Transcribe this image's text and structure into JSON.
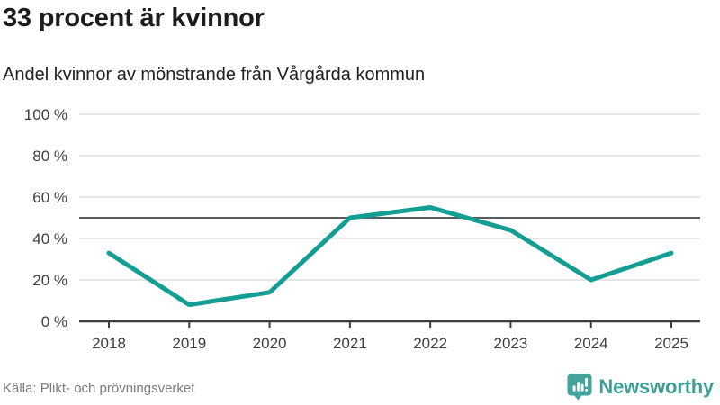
{
  "header": {
    "title": "33 procent är kvinnor",
    "subtitle": "Andel kvinnor av mönstrande från Vårgårda kommun"
  },
  "footer": {
    "source": "Källa: Plikt- och prövningsverket",
    "brand": "Newsworthy",
    "logo_icon": "bar-chart-speech-bubble-icon"
  },
  "colors": {
    "line": "#149e93",
    "brand_teal": "#3d9f97",
    "grid": "#e3e3e3",
    "axis": "#3c3c3c",
    "reference": "#5a5a5c",
    "tick_label": "#3f3f3f",
    "title_text": "#1c1c1a",
    "source_text": "#7c7c7c"
  },
  "chart_data": {
    "type": "line",
    "title": "33 procent är kvinnor",
    "subtitle": "Andel kvinnor av mönstrande från Vårgårda kommun",
    "x": [
      "2018",
      "2019",
      "2020",
      "2021",
      "2022",
      "2023",
      "2024",
      "2025"
    ],
    "series": [
      {
        "name": "Andel kvinnor av mönstrande",
        "values": [
          33,
          8,
          14,
          50,
          55,
          44,
          20,
          33
        ]
      }
    ],
    "xlabel": "",
    "ylabel": "",
    "ylim": [
      0,
      100
    ],
    "yticks": [
      0,
      20,
      40,
      60,
      80,
      100
    ],
    "ytick_suffix": " %",
    "reference_line": 50,
    "grid": true,
    "legend": "none"
  }
}
